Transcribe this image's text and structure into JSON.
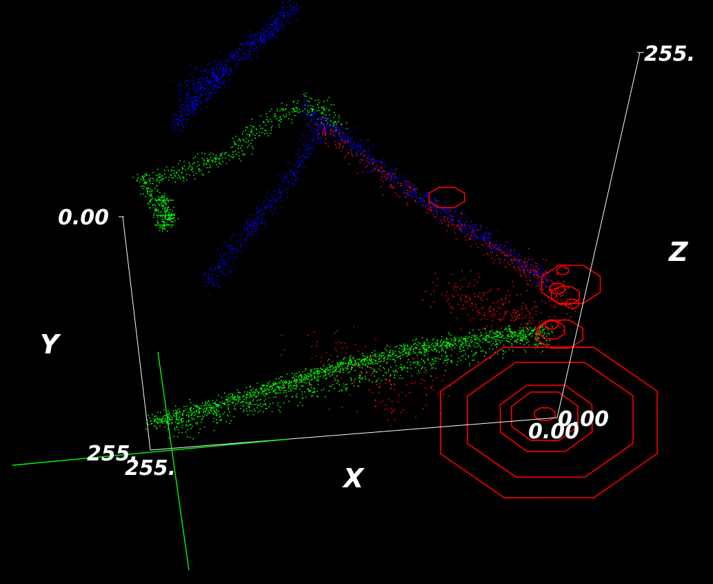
{
  "chart_data": {
    "type": "scatter",
    "projection": "3d-perspective",
    "axes": {
      "x": {
        "title": "X",
        "range": [
          0,
          255
        ],
        "tick_labels": [
          "255.",
          "0.00"
        ]
      },
      "y": {
        "title": "Y",
        "range": [
          0,
          255
        ],
        "tick_labels": [
          "0.00",
          "255."
        ]
      },
      "z": {
        "title": "Z",
        "range": [
          0,
          255
        ],
        "tick_labels": [
          "0.00",
          "255."
        ]
      }
    },
    "series": [
      {
        "color": "#00ff00",
        "description_points": [
          {
            "x": 250,
            "y": 240,
            "z": 8
          },
          {
            "x": 215,
            "y": 215,
            "z": 10
          },
          {
            "x": 170,
            "y": 185,
            "z": 15
          },
          {
            "x": 120,
            "y": 150,
            "z": 22
          },
          {
            "x": 80,
            "y": 110,
            "z": 30
          },
          {
            "x": 45,
            "y": 70,
            "z": 60
          },
          {
            "x": 200,
            "y": 40,
            "z": 120
          },
          {
            "x": 240,
            "y": 5,
            "z": 150
          }
        ]
      },
      {
        "color": "#0000ff",
        "description_points": [
          {
            "x": 20,
            "y": 60,
            "z": 170
          },
          {
            "x": 60,
            "y": 30,
            "z": 200
          },
          {
            "x": 150,
            "y": 60,
            "z": 210
          },
          {
            "x": 200,
            "y": 80,
            "z": 230
          },
          {
            "x": 240,
            "y": 20,
            "z": 250
          }
        ]
      },
      {
        "color": "#ff0000",
        "description_points": [
          {
            "x": 10,
            "y": 20,
            "z": 40
          },
          {
            "x": 30,
            "y": 30,
            "z": 80
          },
          {
            "x": 60,
            "y": 50,
            "z": 150
          },
          {
            "x": 150,
            "y": 60,
            "z": 200
          }
        ]
      }
    ],
    "density_rings_color": "#ff0000",
    "background": "#000000",
    "axis_color": "#ffffff",
    "reference_lines_color": "#00ff00"
  },
  "labels": {
    "y_top": "0.00",
    "y_axis": "Y",
    "x_axis": "X",
    "z_axis": "Z",
    "z_top": "255.",
    "x_left_1": "255.",
    "x_left_2": "255.",
    "origin_1": "0.00",
    "origin_2": "0.00"
  }
}
